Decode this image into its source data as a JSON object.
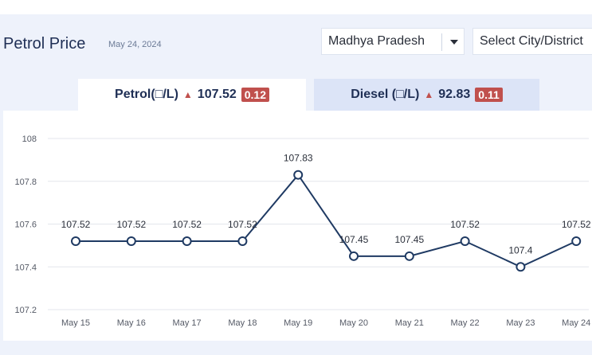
{
  "header": {
    "title": "Petrol Price",
    "date": "May 24, 2024"
  },
  "filters": {
    "state": "Madhya Pradesh",
    "city_placeholder": "Select City/District"
  },
  "tabs": [
    {
      "label": "Petrol(□/L)",
      "price": "107.52",
      "change": "0.12"
    },
    {
      "label": "Diesel (□/L)",
      "price": "92.83",
      "change": "0.11"
    }
  ],
  "colors": {
    "line": "#1f3a63",
    "badge": "#c0504d",
    "grid": "#e3e6ec"
  },
  "chart_data": {
    "type": "line",
    "categories": [
      "May 15",
      "May 16",
      "May 17",
      "May 18",
      "May 19",
      "May 20",
      "May 21",
      "May 22",
      "May 23",
      "May 24"
    ],
    "values": [
      107.52,
      107.52,
      107.52,
      107.52,
      107.83,
      107.45,
      107.45,
      107.52,
      107.4,
      107.52
    ],
    "data_labels": [
      "107.52",
      "107.52",
      "107.52",
      "107.52",
      "107.83",
      "107.45",
      "107.45",
      "107.52",
      "107.4",
      "107.52"
    ],
    "ylim": [
      107.2,
      108
    ],
    "yticks": [
      "107.2",
      "107.4",
      "107.6",
      "107.8",
      "108"
    ],
    "title": "",
    "xlabel": "",
    "ylabel": "",
    "grid": true
  }
}
